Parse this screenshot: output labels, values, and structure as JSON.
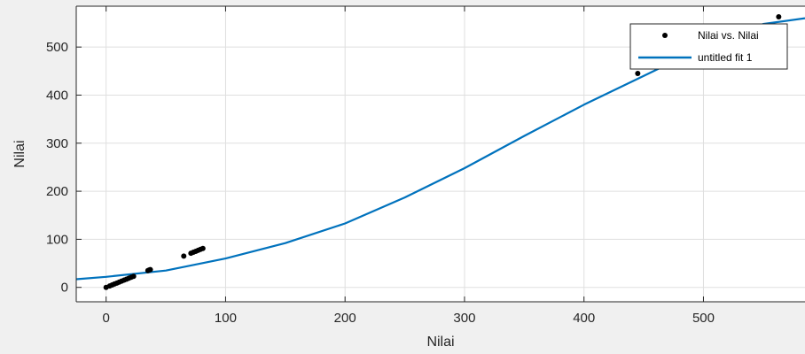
{
  "chart_data": {
    "type": "scatter",
    "xlabel": "Nilai",
    "ylabel": "Nilai",
    "xlim": [
      -25,
      585
    ],
    "ylim": [
      -30,
      585
    ],
    "xticks": [
      0,
      100,
      200,
      300,
      400,
      500
    ],
    "yticks": [
      0,
      100,
      200,
      300,
      400,
      500
    ],
    "grid": true,
    "legend_position": "top-right",
    "series": [
      {
        "name": "Nilai vs. Nilai",
        "kind": "points",
        "color": "#000000",
        "x": [
          0,
          3,
          5,
          7,
          9,
          11,
          13,
          15,
          17,
          19,
          21,
          23,
          35,
          36,
          37,
          65,
          71,
          73,
          75,
          77,
          79,
          81,
          445,
          563
        ],
        "y": [
          0,
          3,
          5,
          7,
          9,
          11,
          13,
          15,
          17,
          19,
          21,
          23,
          35,
          36,
          37,
          65,
          71,
          73,
          75,
          77,
          79,
          81,
          445,
          563
        ]
      },
      {
        "name": "untitled fit 1",
        "kind": "line",
        "color": "#0072bd",
        "x": [
          -25,
          0,
          50,
          100,
          150,
          200,
          250,
          300,
          350,
          400,
          450,
          500,
          550,
          585
        ],
        "y": [
          17,
          22,
          35,
          60,
          92,
          133,
          187,
          248,
          315,
          380,
          440,
          500,
          548,
          560
        ]
      }
    ]
  }
}
